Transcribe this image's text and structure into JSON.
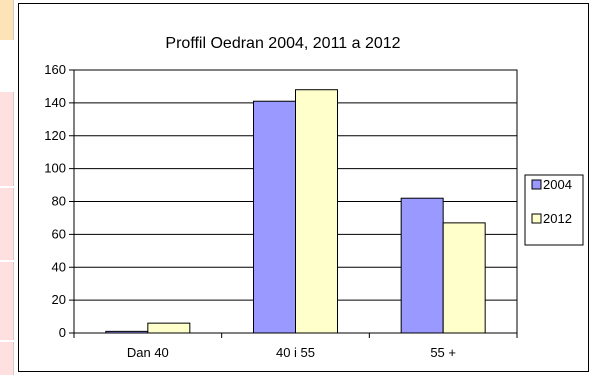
{
  "chart_data": {
    "type": "bar",
    "title": "Proffil Oedran 2004, 2011 a 2012",
    "categories": [
      "Dan 40",
      "40 i 55",
      "55 +"
    ],
    "series": [
      {
        "name": "2004",
        "values": [
          1,
          141,
          82
        ],
        "color": "#9999ff"
      },
      {
        "name": "2012",
        "values": [
          6,
          148,
          67
        ],
        "color": "#ffffcc"
      }
    ],
    "yticks": [
      "0",
      "20",
      "40",
      "60",
      "80",
      "100",
      "120",
      "140",
      "160"
    ],
    "ylim": [
      0,
      160
    ],
    "grid": true,
    "legend": "right"
  },
  "sidebar_colors": [
    "#fde3b8",
    "#ffe0e0",
    "#ffe0e0",
    "#ffe0e0",
    "#ffe0e0"
  ]
}
